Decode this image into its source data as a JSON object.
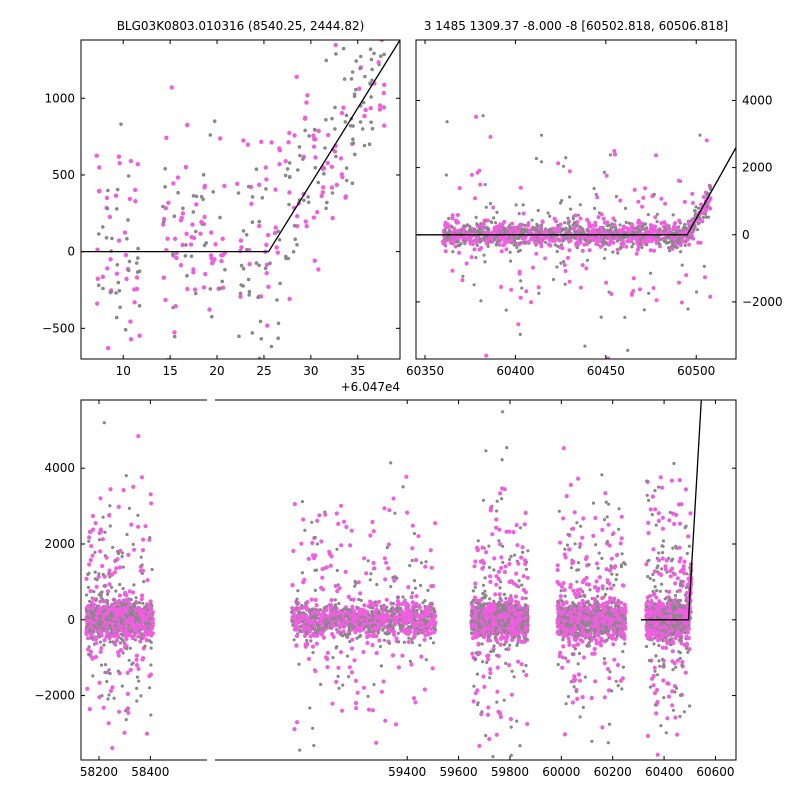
{
  "chart_data": [
    {
      "type": "scatter",
      "title": "BLG03K0803.010316 (8540.25, 2444.82)",
      "xlim": [
        5.5,
        39.5
      ],
      "ylim": [
        -700,
        1380
      ],
      "x_offset_label": "+6.047e4",
      "x_ticks": [
        10,
        15,
        20,
        25,
        30,
        35
      ],
      "y_ticks": [
        -500,
        0,
        500,
        1000
      ],
      "series": [
        {
          "color": "#888888",
          "marker": "small dot"
        },
        {
          "color": "#f05ee0",
          "marker": "dot"
        }
      ],
      "model": {
        "color": "#000000",
        "points": [
          [
            5.5,
            0
          ],
          [
            25.5,
            0
          ],
          [
            39.5,
            1380
          ]
        ]
      }
    },
    {
      "type": "scatter",
      "title": "3 1485 1309.37 -8.000 -8 [60502.818, 60506.818]",
      "xlim": [
        60345,
        60522
      ],
      "ylim": [
        -3700,
        5800
      ],
      "x_ticks": [
        60350,
        60400,
        60450,
        60500
      ],
      "y_ticks": [
        -2000,
        0,
        2000,
        4000
      ],
      "y_axis_side": "right",
      "series": [
        {
          "color": "#888888",
          "marker": "small dot"
        },
        {
          "color": "#f05ee0",
          "marker": "dot"
        }
      ],
      "model": {
        "color": "#000000",
        "points": [
          [
            60345,
            0
          ],
          [
            60495,
            0
          ],
          [
            60522,
            2600
          ]
        ]
      }
    },
    {
      "type": "scatter",
      "xlim": [
        58130,
        60680
      ],
      "ylim": [
        -3700,
        5800
      ],
      "x_ticks": [
        58200,
        58400,
        59400,
        59600,
        59800,
        60000,
        60200,
        60400,
        60600
      ],
      "y_ticks": [
        -2000,
        0,
        2000,
        4000
      ],
      "seasons": [
        [
          58150,
          58410
        ],
        [
          58950,
          59510
        ],
        [
          59650,
          59870
        ],
        [
          59985,
          60250
        ],
        [
          60330,
          60506
        ]
      ],
      "series": [
        {
          "color": "#888888",
          "marker": "small dot"
        },
        {
          "color": "#f05ee0",
          "marker": "dot"
        }
      ],
      "model": {
        "color": "#000000",
        "points": [
          [
            60310,
            0
          ],
          [
            60495,
            0
          ],
          [
            60545,
            5800
          ]
        ]
      }
    }
  ]
}
